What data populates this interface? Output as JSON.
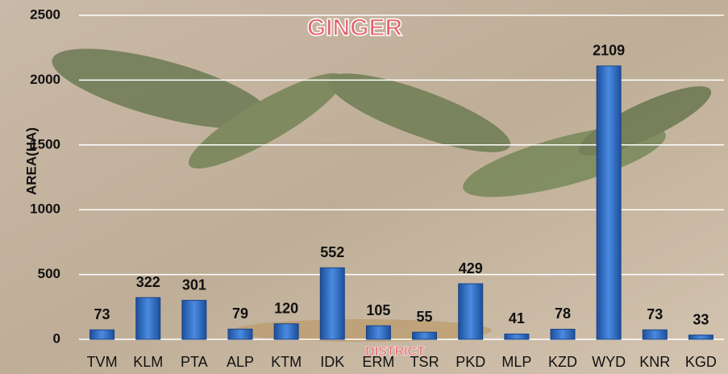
{
  "chart_data": {
    "type": "bar",
    "title": "GINGER",
    "x_label": "DISTRICT",
    "y_label": "AREA(HA)",
    "categories": [
      "TVM",
      "KLM",
      "PTA",
      "ALP",
      "KTM",
      "IDK",
      "ERM",
      "TSR",
      "PKD",
      "MLP",
      "KZD",
      "WYD",
      "KNR",
      "KGD"
    ],
    "values": [
      73,
      322,
      301,
      79,
      120,
      552,
      105,
      55,
      429,
      41,
      78,
      2109,
      73,
      33
    ],
    "color": "#2f6cc4",
    "ylim": [
      0,
      2500
    ],
    "yticks": [
      0,
      500,
      1000,
      1500,
      2000,
      2500
    ],
    "grid": true
  }
}
